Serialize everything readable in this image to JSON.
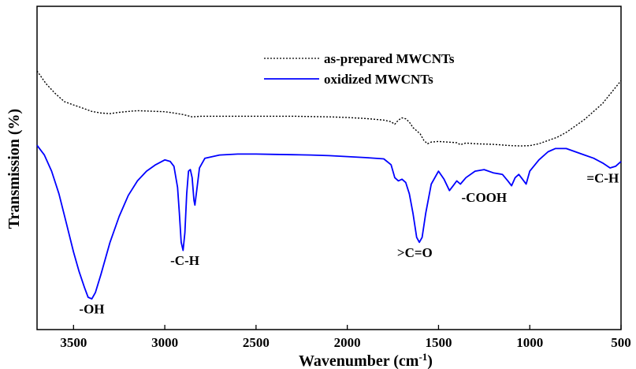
{
  "chart_data": {
    "type": "line",
    "xlabel": "Wavenumber (cm",
    "xlabel_sup": "-1",
    "xlabel_end": ")",
    "ylabel": "Transmission (%)",
    "x_reversed": true,
    "xlim": [
      3700,
      500
    ],
    "ylim": [
      0,
      100
    ],
    "y_ticks_labeled": false,
    "x_ticks": [
      3500,
      3000,
      2500,
      2000,
      1500,
      1000,
      500
    ],
    "x_tick_labels": [
      "3500",
      "3000",
      "2500",
      "2000",
      "1500",
      "1000",
      "500"
    ],
    "grid": false,
    "legend_position": "top-center",
    "series": [
      {
        "name": "as-prepared MWCNTs",
        "color": "#000000",
        "style": "dotted",
        "points": [
          [
            3700,
            80
          ],
          [
            3650,
            76
          ],
          [
            3600,
            73
          ],
          [
            3550,
            70.5
          ],
          [
            3500,
            69.5
          ],
          [
            3450,
            68.5
          ],
          [
            3400,
            67.5
          ],
          [
            3350,
            67
          ],
          [
            3300,
            66.8
          ],
          [
            3250,
            67.2
          ],
          [
            3200,
            67.5
          ],
          [
            3150,
            67.7
          ],
          [
            3100,
            67.6
          ],
          [
            3000,
            67.4
          ],
          [
            2950,
            67
          ],
          [
            2900,
            66.5
          ],
          [
            2850,
            65.8
          ],
          [
            2800,
            66
          ],
          [
            2700,
            66
          ],
          [
            2600,
            66
          ],
          [
            2500,
            66
          ],
          [
            2400,
            66
          ],
          [
            2300,
            66
          ],
          [
            2200,
            65.9
          ],
          [
            2100,
            65.8
          ],
          [
            2000,
            65.6
          ],
          [
            1900,
            65.3
          ],
          [
            1800,
            64.8
          ],
          [
            1760,
            64.3
          ],
          [
            1740,
            63.5
          ],
          [
            1720,
            64.8
          ],
          [
            1700,
            65.5
          ],
          [
            1680,
            65.2
          ],
          [
            1660,
            64.2
          ],
          [
            1640,
            62.5
          ],
          [
            1620,
            61.5
          ],
          [
            1600,
            60.5
          ],
          [
            1580,
            58.5
          ],
          [
            1560,
            57.5
          ],
          [
            1540,
            58
          ],
          [
            1500,
            58.2
          ],
          [
            1450,
            58
          ],
          [
            1400,
            57.8
          ],
          [
            1380,
            57.2
          ],
          [
            1350,
            57.7
          ],
          [
            1300,
            57.5
          ],
          [
            1250,
            57.4
          ],
          [
            1200,
            57.3
          ],
          [
            1150,
            57.1
          ],
          [
            1100,
            56.9
          ],
          [
            1050,
            56.8
          ],
          [
            1000,
            56.9
          ],
          [
            950,
            57.5
          ],
          [
            900,
            58.5
          ],
          [
            850,
            59.5
          ],
          [
            800,
            61
          ],
          [
            750,
            63
          ],
          [
            700,
            65
          ],
          [
            650,
            67.5
          ],
          [
            600,
            70
          ],
          [
            550,
            73.5
          ],
          [
            500,
            77
          ]
        ]
      },
      {
        "name": "oxidized MWCNTs",
        "color": "#0000ff",
        "style": "solid",
        "points": [
          [
            3700,
            57
          ],
          [
            3660,
            54
          ],
          [
            3620,
            49
          ],
          [
            3580,
            42
          ],
          [
            3540,
            33
          ],
          [
            3500,
            24
          ],
          [
            3470,
            18
          ],
          [
            3440,
            13
          ],
          [
            3420,
            10
          ],
          [
            3400,
            9.5
          ],
          [
            3380,
            11.5
          ],
          [
            3350,
            17
          ],
          [
            3300,
            27
          ],
          [
            3250,
            35
          ],
          [
            3200,
            41.5
          ],
          [
            3150,
            46
          ],
          [
            3100,
            49
          ],
          [
            3050,
            51
          ],
          [
            3000,
            52.5
          ],
          [
            2970,
            52
          ],
          [
            2950,
            50.5
          ],
          [
            2930,
            44
          ],
          [
            2920,
            36
          ],
          [
            2910,
            27
          ],
          [
            2900,
            24.5
          ],
          [
            2890,
            30
          ],
          [
            2880,
            42
          ],
          [
            2870,
            49
          ],
          [
            2860,
            49.5
          ],
          [
            2850,
            47
          ],
          [
            2840,
            40
          ],
          [
            2835,
            38.5
          ],
          [
            2825,
            43
          ],
          [
            2810,
            50
          ],
          [
            2780,
            53
          ],
          [
            2700,
            54
          ],
          [
            2600,
            54.3
          ],
          [
            2500,
            54.3
          ],
          [
            2400,
            54.2
          ],
          [
            2300,
            54.1
          ],
          [
            2200,
            54
          ],
          [
            2100,
            53.8
          ],
          [
            2000,
            53.5
          ],
          [
            1900,
            53.2
          ],
          [
            1800,
            52.8
          ],
          [
            1760,
            51
          ],
          [
            1740,
            47
          ],
          [
            1720,
            46
          ],
          [
            1700,
            46.5
          ],
          [
            1680,
            45.5
          ],
          [
            1660,
            42
          ],
          [
            1640,
            36
          ],
          [
            1620,
            28.5
          ],
          [
            1605,
            27
          ],
          [
            1590,
            28.5
          ],
          [
            1570,
            36
          ],
          [
            1540,
            45
          ],
          [
            1500,
            49
          ],
          [
            1470,
            46.5
          ],
          [
            1440,
            43
          ],
          [
            1420,
            44.5
          ],
          [
            1400,
            46
          ],
          [
            1380,
            45
          ],
          [
            1350,
            47
          ],
          [
            1300,
            49
          ],
          [
            1250,
            49.5
          ],
          [
            1200,
            48.5
          ],
          [
            1150,
            48
          ],
          [
            1120,
            46
          ],
          [
            1100,
            44.5
          ],
          [
            1080,
            47
          ],
          [
            1060,
            48
          ],
          [
            1040,
            46.5
          ],
          [
            1020,
            45
          ],
          [
            1000,
            49
          ],
          [
            950,
            52.5
          ],
          [
            900,
            55
          ],
          [
            860,
            56
          ],
          [
            800,
            56
          ],
          [
            750,
            55
          ],
          [
            700,
            54
          ],
          [
            650,
            53
          ],
          [
            600,
            51.5
          ],
          [
            560,
            50
          ],
          [
            530,
            50.5
          ],
          [
            500,
            52
          ]
        ]
      }
    ],
    "annotations": [
      {
        "text": "-OH",
        "x": 3400,
        "y": 5
      },
      {
        "text": "-C-H",
        "x": 2890,
        "y": 20
      },
      {
        "text": ">C=O",
        "x": 1630,
        "y": 22.5
      },
      {
        "text": "-COOH",
        "x": 1250,
        "y": 39.5
      },
      {
        "text": "=C-H",
        "x": 600,
        "y": 45.5
      }
    ]
  }
}
